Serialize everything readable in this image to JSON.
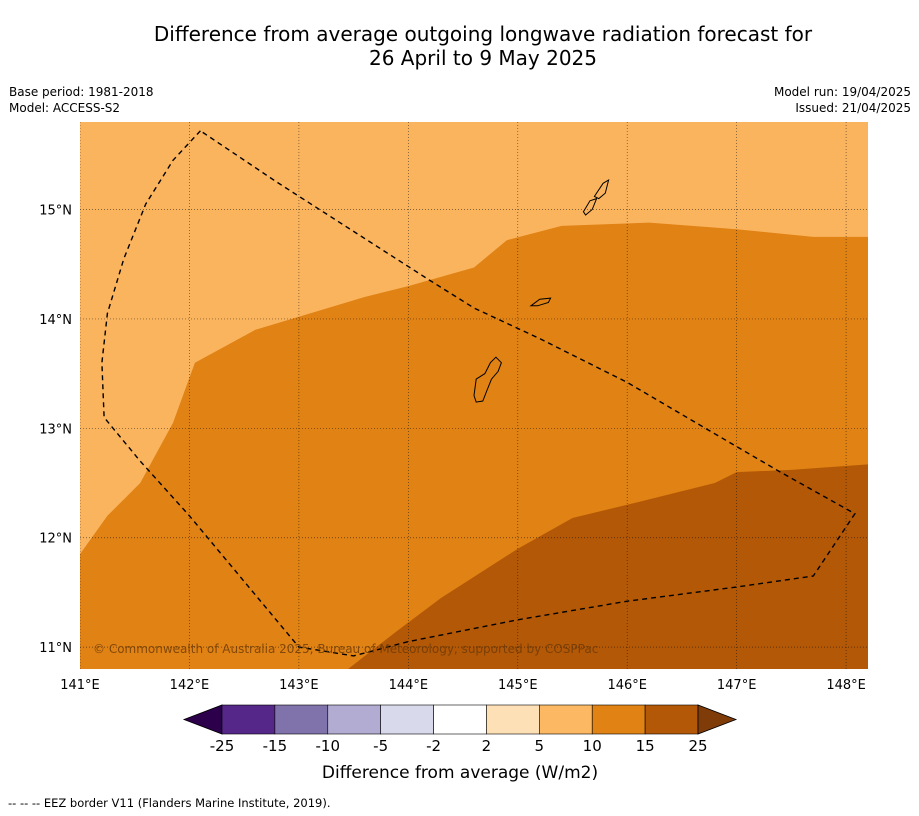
{
  "title": {
    "line1": "Difference from average outgoing longwave radiation forecast for",
    "line2": "26 April to 9 May 2025"
  },
  "meta_left": {
    "base_period": "Base period: 1981-2018",
    "model": "Model: ACCESS-S2"
  },
  "meta_right": {
    "model_run": "Model run: 19/04/2025",
    "issued": "Issued: 21/04/2025"
  },
  "map": {
    "lon_range": [
      141.0,
      148.2
    ],
    "lat_range": [
      10.8,
      15.8
    ],
    "lon_ticks": [
      141,
      142,
      143,
      144,
      145,
      146,
      147,
      148
    ],
    "lon_labels": [
      "141°E",
      "142°E",
      "143°E",
      "144°E",
      "145°E",
      "146°E",
      "147°E",
      "148°E"
    ],
    "lat_ticks": [
      15,
      14,
      13,
      12,
      11
    ],
    "lat_labels": [
      "15°N",
      "14°N",
      "13°N",
      "12°N",
      "11°N"
    ],
    "copyright": "© Commonwealth of Australia 2025, Bureau of Meteorology, supported by COSPPac",
    "zone_colors": {
      "5_to_10": "#fbb45e",
      "10_to_15": "#e08214",
      "15_to_25": "#b35806"
    },
    "boundary_10": [
      [
        141.0,
        11.85
      ],
      [
        141.25,
        12.2
      ],
      [
        141.55,
        12.5
      ],
      [
        141.85,
        13.05
      ],
      [
        142.05,
        13.6
      ],
      [
        142.6,
        13.9
      ],
      [
        143.0,
        14.02
      ],
      [
        143.6,
        14.2
      ],
      [
        144.0,
        14.3
      ],
      [
        144.6,
        14.47
      ],
      [
        144.9,
        14.72
      ],
      [
        145.4,
        14.85
      ],
      [
        146.2,
        14.88
      ],
      [
        147.0,
        14.82
      ],
      [
        147.7,
        14.75
      ],
      [
        148.2,
        14.75
      ]
    ],
    "boundary_15": [
      [
        143.45,
        10.8
      ],
      [
        143.9,
        11.15
      ],
      [
        144.3,
        11.45
      ],
      [
        145.0,
        11.9
      ],
      [
        145.5,
        12.18
      ],
      [
        146.2,
        12.35
      ],
      [
        146.8,
        12.5
      ],
      [
        147.0,
        12.6
      ],
      [
        147.5,
        12.62
      ],
      [
        148.2,
        12.67
      ]
    ],
    "eez_border": [
      [
        142.1,
        15.72
      ],
      [
        141.85,
        15.45
      ],
      [
        141.6,
        15.05
      ],
      [
        141.4,
        14.55
      ],
      [
        141.25,
        14.05
      ],
      [
        141.2,
        13.6
      ],
      [
        141.22,
        13.1
      ],
      [
        141.55,
        12.7
      ],
      [
        142.0,
        12.2
      ],
      [
        142.5,
        11.6
      ],
      [
        143.0,
        11.0
      ],
      [
        143.5,
        10.92
      ],
      [
        144.0,
        11.05
      ],
      [
        145.0,
        11.25
      ],
      [
        146.0,
        11.42
      ],
      [
        147.0,
        11.55
      ],
      [
        147.7,
        11.65
      ],
      [
        148.08,
        12.22
      ],
      [
        147.4,
        12.6
      ],
      [
        146.8,
        12.95
      ],
      [
        146.0,
        13.42
      ],
      [
        145.2,
        13.82
      ],
      [
        144.6,
        14.1
      ],
      [
        144.2,
        14.35
      ],
      [
        143.5,
        14.8
      ],
      [
        142.8,
        15.25
      ],
      [
        142.1,
        15.72
      ]
    ],
    "islands": [
      [
        [
          144.62,
          13.45
        ],
        [
          144.7,
          13.5
        ],
        [
          144.75,
          13.6
        ],
        [
          144.8,
          13.65
        ],
        [
          144.85,
          13.6
        ],
        [
          144.82,
          13.52
        ],
        [
          144.76,
          13.45
        ],
        [
          144.72,
          13.35
        ],
        [
          144.68,
          13.25
        ],
        [
          144.62,
          13.24
        ],
        [
          144.6,
          13.3
        ],
        [
          144.62,
          13.45
        ]
      ],
      [
        [
          145.12,
          14.12
        ],
        [
          145.2,
          14.18
        ],
        [
          145.3,
          14.19
        ],
        [
          145.28,
          14.15
        ],
        [
          145.18,
          14.12
        ],
        [
          145.12,
          14.12
        ]
      ],
      [
        [
          145.6,
          14.98
        ],
        [
          145.66,
          15.08
        ],
        [
          145.72,
          15.1
        ],
        [
          145.68,
          15.0
        ],
        [
          145.62,
          14.95
        ],
        [
          145.6,
          14.98
        ]
      ],
      [
        [
          145.7,
          15.12
        ],
        [
          145.78,
          15.24
        ],
        [
          145.83,
          15.27
        ],
        [
          145.8,
          15.15
        ],
        [
          145.74,
          15.1
        ],
        [
          145.7,
          15.12
        ]
      ]
    ]
  },
  "colorbar": {
    "title": "Difference from average (W/m2)",
    "labels": [
      "-25",
      "-15",
      "-10",
      "-5",
      "-2",
      "2",
      "5",
      "10",
      "15",
      "25"
    ],
    "colors": [
      "#2d004b",
      "#542788",
      "#8073ac",
      "#b2abd2",
      "#d8daeb",
      "#ffffff",
      "#fee0b6",
      "#fdb863",
      "#e08214",
      "#b35806",
      "#7f3b08"
    ]
  },
  "footer": "--  --  -- EEZ border V11 (Flanders Marine Institute, 2019)."
}
